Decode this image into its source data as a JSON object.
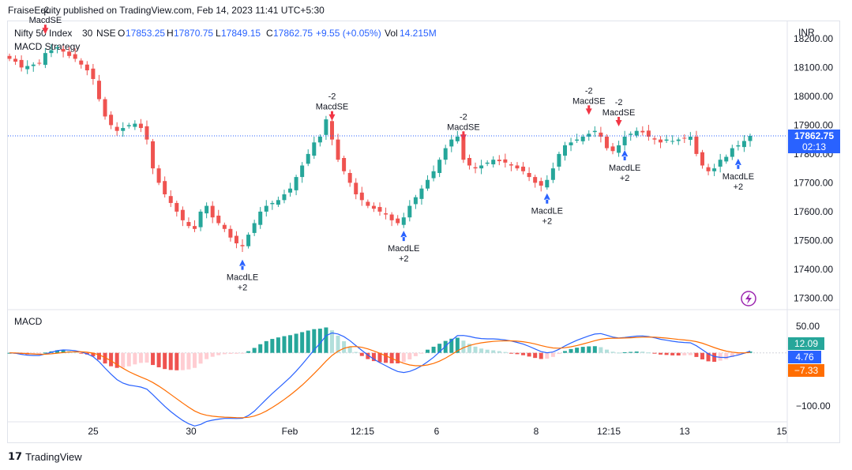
{
  "header": {
    "published_by": "FraiseEquity published on TradingView.com, Feb 14, 2023 11:41 UTC+5:30"
  },
  "symbol": {
    "name": "Nifty 50 Index",
    "interval": "30",
    "exchange": "NSE",
    "open_label": "O",
    "open": "17853.25",
    "high_label": "H",
    "high": "17870.75",
    "low_label": "L",
    "low": "17849.15",
    "close_label": "C",
    "close": "17862.75",
    "change": "+9.55 (+0.05%)",
    "vol_label": "Vol",
    "vol": "14.215M",
    "currency": "INR"
  },
  "strategy_label": "MACD Strategy",
  "macd_label": "MACD",
  "price_tag": {
    "price": "17862.75",
    "countdown": "02:13"
  },
  "macd_tags": {
    "histogram": "12.09",
    "macd": "4.76",
    "signal": "−7.33"
  },
  "footer": {
    "brand": "TradingView"
  },
  "colors": {
    "up": "#26a69a",
    "down": "#ef5350",
    "up_light": "#b2dfdb",
    "down_light": "#ffcdd2",
    "macd": "#2962ff",
    "signal": "#ff6d00",
    "buy_arrow": "#2962ff",
    "sell_arrow": "#f23645"
  },
  "chart_data": {
    "type": "candlestick",
    "price_axis": {
      "ticks": [
        18200,
        18100,
        18000,
        17900,
        17800,
        17700,
        17600,
        17500,
        17400,
        17300
      ],
      "tick_labels": [
        "18200.00",
        "18100.00",
        "18000.00",
        "17900.00",
        "17800.00",
        "17700.00",
        "17600.00",
        "17500.00",
        "17400.00",
        "17300.00"
      ],
      "range": [
        17260,
        18260
      ]
    },
    "macd_axis": {
      "ticks": [
        50,
        -100
      ],
      "tick_labels": [
        "50.00",
        "−100.00"
      ],
      "range": [
        -130,
        80
      ]
    },
    "x_ticks": [
      "25",
      "30",
      "Feb",
      "12:15",
      "6",
      "8",
      "12:15",
      "13",
      "15"
    ],
    "close_series": [
      18130,
      18120,
      18100,
      18105,
      18110,
      18115,
      18150,
      18160,
      18170,
      18155,
      18140,
      18130,
      18110,
      18090,
      18060,
      17990,
      17930,
      17900,
      17880,
      17890,
      17900,
      17905,
      17890,
      17850,
      17750,
      17700,
      17660,
      17630,
      17600,
      17570,
      17550,
      17540,
      17600,
      17620,
      17580,
      17560,
      17540,
      17510,
      17490,
      17480,
      17520,
      17560,
      17600,
      17620,
      17630,
      17640,
      17660,
      17680,
      17720,
      17760,
      17800,
      17840,
      17860,
      17920,
      17850,
      17780,
      17740,
      17700,
      17660,
      17640,
      17620,
      17610,
      17600,
      17590,
      17570,
      17560,
      17580,
      17620,
      17650,
      17680,
      17710,
      17740,
      17780,
      17820,
      17850,
      17860,
      17780,
      17760,
      17750,
      17760,
      17770,
      17780,
      17775,
      17770,
      17760,
      17750,
      17740,
      17720,
      17700,
      17690,
      17710,
      17750,
      17800,
      17830,
      17840,
      17850,
      17860,
      17870,
      17880,
      17860,
      17820,
      17810,
      17830,
      17860,
      17870,
      17880,
      17875,
      17860,
      17850,
      17840,
      17850,
      17845,
      17850,
      17855,
      17860,
      17800,
      17760,
      17740,
      17750,
      17780,
      17790,
      17820,
      17830,
      17845,
      17862.75
    ],
    "signals": [
      {
        "type": "MacdSE",
        "qty": "-2",
        "index": 6
      },
      {
        "type": "MacdLE",
        "qty": "+2",
        "index": 39
      },
      {
        "type": "MacdSE",
        "qty": "-2",
        "index": 54
      },
      {
        "type": "MacdLE",
        "qty": "+2",
        "index": 66
      },
      {
        "type": "MacdSE",
        "qty": "-2",
        "index": 76
      },
      {
        "type": "MacdLE",
        "qty": "+2",
        "index": 90
      },
      {
        "type": "MacdSE",
        "qty": "-2",
        "index": 97
      },
      {
        "type": "MacdSE",
        "qty": "-2",
        "index": 102
      },
      {
        "type": "MacdLE",
        "qty": "+2",
        "index": 103
      },
      {
        "type": "MacdLE",
        "qty": "+2",
        "index": 122
      }
    ]
  }
}
